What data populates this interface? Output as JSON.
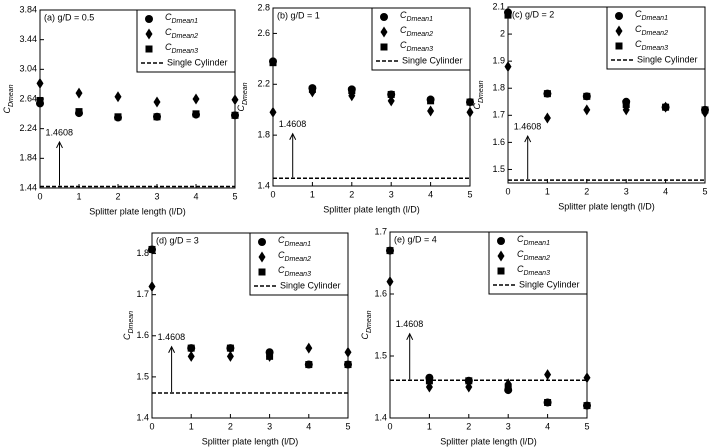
{
  "chart_data": [
    {
      "type": "scatter",
      "title": "(a) g/D = 0.5",
      "x_label": "Splitter plate length (l/D)",
      "y_label": "CDmean",
      "x": [
        0,
        1,
        2,
        3,
        4,
        5
      ],
      "xlim": [
        0,
        5
      ],
      "xticks": [
        0,
        1,
        2,
        3,
        4,
        5
      ],
      "ylim": [
        1.44,
        3.84
      ],
      "yticks": [
        1.44,
        1.84,
        2.24,
        2.64,
        3.04,
        3.44,
        3.84
      ],
      "series": [
        {
          "name": "CDmean1",
          "marker": "circle",
          "color": "#000000",
          "values": [
            2.58,
            2.45,
            2.39,
            2.4,
            2.43,
            2.42
          ]
        },
        {
          "name": "CDmean2",
          "marker": "diamond",
          "color": "#000000",
          "values": [
            2.85,
            2.72,
            2.67,
            2.6,
            2.64,
            2.63
          ]
        },
        {
          "name": "CDmean3",
          "marker": "square",
          "color": "#000000",
          "values": [
            2.62,
            2.47,
            2.4,
            2.4,
            2.44,
            2.42
          ]
        }
      ],
      "reference_line": {
        "name": "Single Cylinder",
        "value": 1.4608
      },
      "annotation": "1.4608"
    },
    {
      "type": "scatter",
      "title": "(b) g/D = 1",
      "x_label": "Splitter plate length (l/D)",
      "y_label": "CDmean",
      "x": [
        0,
        1,
        2,
        3,
        4,
        5
      ],
      "xlim": [
        0,
        5
      ],
      "xticks": [
        0,
        1,
        2,
        3,
        4,
        5
      ],
      "ylim": [
        1.4,
        2.8
      ],
      "yticks": [
        1.4,
        1.8,
        2.2,
        2.6,
        2.8
      ],
      "series": [
        {
          "name": "CDmean1",
          "marker": "circle",
          "color": "#000000",
          "values": [
            2.38,
            2.17,
            2.16,
            2.12,
            2.08,
            2.06
          ]
        },
        {
          "name": "CDmean2",
          "marker": "diamond",
          "color": "#000000",
          "values": [
            1.98,
            2.14,
            2.11,
            2.07,
            1.99,
            1.98
          ]
        },
        {
          "name": "CDmean3",
          "marker": "square",
          "color": "#000000",
          "values": [
            2.37,
            2.16,
            2.15,
            2.12,
            2.07,
            2.06
          ]
        }
      ],
      "reference_line": {
        "name": "Single Cylinder",
        "value": 1.4608
      },
      "annotation": "1.4608"
    },
    {
      "type": "scatter",
      "title": "(c) g/D = 2",
      "x_label": "Splitter plate length (l/D)",
      "y_label": "CDmean",
      "x": [
        0,
        1,
        2,
        3,
        4,
        5
      ],
      "xlim": [
        0,
        5
      ],
      "xticks": [
        0,
        1,
        2,
        3,
        4,
        5
      ],
      "ylim": [
        1.45,
        2.1
      ],
      "yticks": [
        1.5,
        1.6,
        1.7,
        1.8,
        1.9,
        2,
        2.1
      ],
      "series": [
        {
          "name": "CDmean1",
          "marker": "circle",
          "color": "#000000",
          "values": [
            2.08,
            1.78,
            1.77,
            1.75,
            1.73,
            1.72
          ]
        },
        {
          "name": "CDmean2",
          "marker": "diamond",
          "color": "#000000",
          "values": [
            1.88,
            1.69,
            1.72,
            1.72,
            1.73,
            1.71
          ]
        },
        {
          "name": "CDmean3",
          "marker": "square",
          "color": "#000000",
          "values": [
            2.07,
            1.78,
            1.77,
            1.74,
            1.73,
            1.72
          ]
        }
      ],
      "reference_line": {
        "name": "Single Cylinder",
        "value": 1.4608
      },
      "annotation": "1.4608"
    },
    {
      "type": "scatter",
      "title": "(d) g/D = 3",
      "x_label": "Splitter plate length (l/D)",
      "y_label": "CDmean",
      "x": [
        0,
        1,
        2,
        3,
        4,
        5
      ],
      "xlim": [
        0,
        5
      ],
      "xticks": [
        0,
        1,
        2,
        3,
        4,
        5
      ],
      "ylim": [
        1.4,
        1.85
      ],
      "yticks": [
        1.4,
        1.5,
        1.6,
        1.7,
        1.8
      ],
      "series": [
        {
          "name": "CDmean1",
          "marker": "circle",
          "color": "#000000",
          "values": [
            1.81,
            1.57,
            1.57,
            1.56,
            1.53,
            1.53
          ]
        },
        {
          "name": "CDmean2",
          "marker": "diamond",
          "color": "#000000",
          "values": [
            1.72,
            1.55,
            1.55,
            1.55,
            1.57,
            1.56
          ]
        },
        {
          "name": "CDmean3",
          "marker": "square",
          "color": "#000000",
          "values": [
            1.81,
            1.57,
            1.57,
            1.55,
            1.53,
            1.53
          ]
        }
      ],
      "reference_line": {
        "name": "Single Cylinder",
        "value": 1.4608
      },
      "annotation": "1.4608"
    },
    {
      "type": "scatter",
      "title": "(e) g/D = 4",
      "x_label": "Splitter plate length (l/D)",
      "y_label": "CDmean",
      "x": [
        0,
        1,
        2,
        3,
        4,
        5
      ],
      "xlim": [
        0,
        5
      ],
      "xticks": [
        0,
        1,
        2,
        3,
        4,
        5
      ],
      "ylim": [
        1.4,
        1.7
      ],
      "yticks": [
        1.4,
        1.5,
        1.6,
        1.7
      ],
      "series": [
        {
          "name": "CDmean1",
          "marker": "circle",
          "color": "#000000",
          "values": [
            1.67,
            1.465,
            1.46,
            1.445,
            1.425,
            1.42
          ]
        },
        {
          "name": "CDmean2",
          "marker": "diamond",
          "color": "#000000",
          "values": [
            1.62,
            1.45,
            1.45,
            1.455,
            1.47,
            1.465
          ]
        },
        {
          "name": "CDmean3",
          "marker": "square",
          "color": "#000000",
          "values": [
            1.67,
            1.46,
            1.46,
            1.45,
            1.425,
            1.42
          ]
        }
      ],
      "reference_line": {
        "name": "Single Cylinder",
        "value": 1.4608
      },
      "annotation": "1.4608"
    }
  ]
}
